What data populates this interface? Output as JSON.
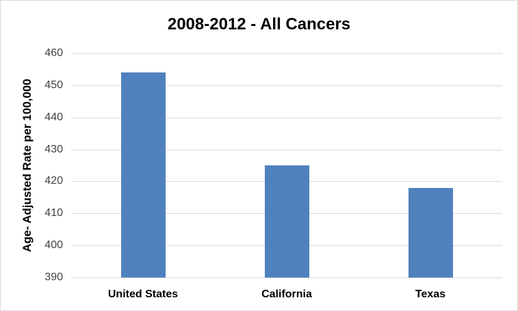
{
  "chart_data": {
    "type": "bar",
    "title": "2008-2012 - All Cancers",
    "xlabel": "",
    "ylabel": "Age- Adjusted Rate per 100,000",
    "categories": [
      "United States",
      "California",
      "Texas"
    ],
    "values": [
      454,
      425,
      418
    ],
    "ylim": [
      390,
      460
    ],
    "yticks": [
      390,
      400,
      410,
      420,
      430,
      440,
      450,
      460
    ],
    "grid": true,
    "legend": null,
    "bar_color": "#4f81bd"
  },
  "labels": {
    "title": "2008-2012 - All Cancers",
    "ylabel": "Age- Adjusted Rate per 100,000",
    "ticks": [
      "390",
      "400",
      "410",
      "420",
      "430",
      "440",
      "450",
      "460"
    ],
    "categories": [
      "United States",
      "California",
      "Texas"
    ]
  }
}
